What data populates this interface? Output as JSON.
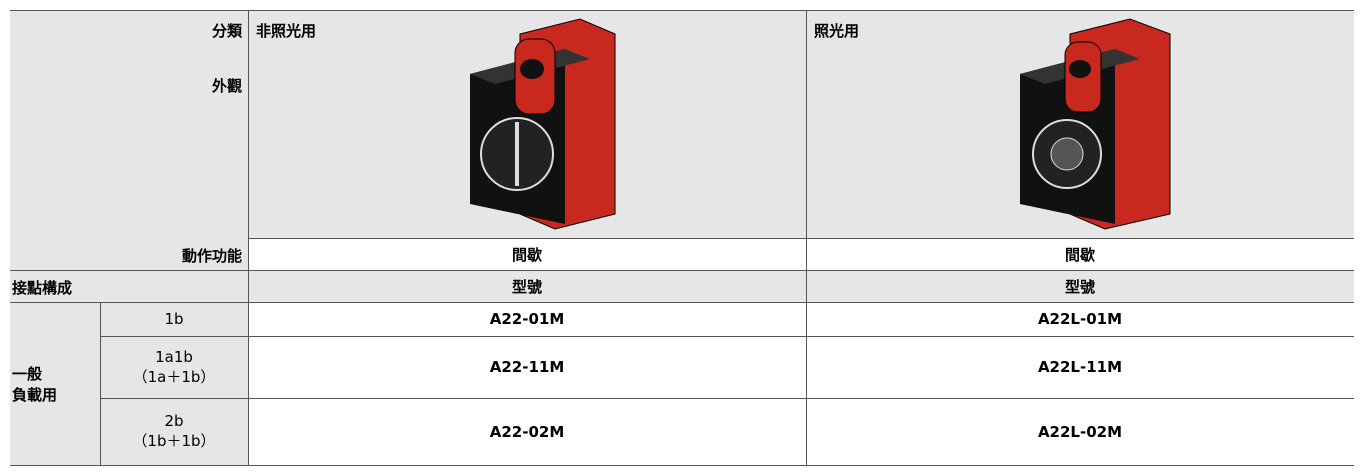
{
  "header": {
    "category_label": "分類",
    "appearance_label": "外觀",
    "function_label": "動作功能",
    "contact_label": "接點構成",
    "columns": [
      {
        "category": "非照光用",
        "function": "間歇",
        "model_header": "型號"
      },
      {
        "category": "照光用",
        "function": "間歇",
        "model_header": "型號"
      }
    ]
  },
  "table": {
    "group_lines": [
      "一般",
      "負載用"
    ],
    "rows": [
      {
        "contact": "1b",
        "note": null,
        "models": [
          "A22-01M",
          "A22L-01M"
        ]
      },
      {
        "contact": "1a1b",
        "note": "（1a＋1b）",
        "models": [
          "A22-11M",
          "A22L-11M"
        ]
      },
      {
        "contact": "2b",
        "note": "（1b＋1b）",
        "models": [
          "A22-02M",
          "A22L-02M"
        ]
      }
    ]
  }
}
